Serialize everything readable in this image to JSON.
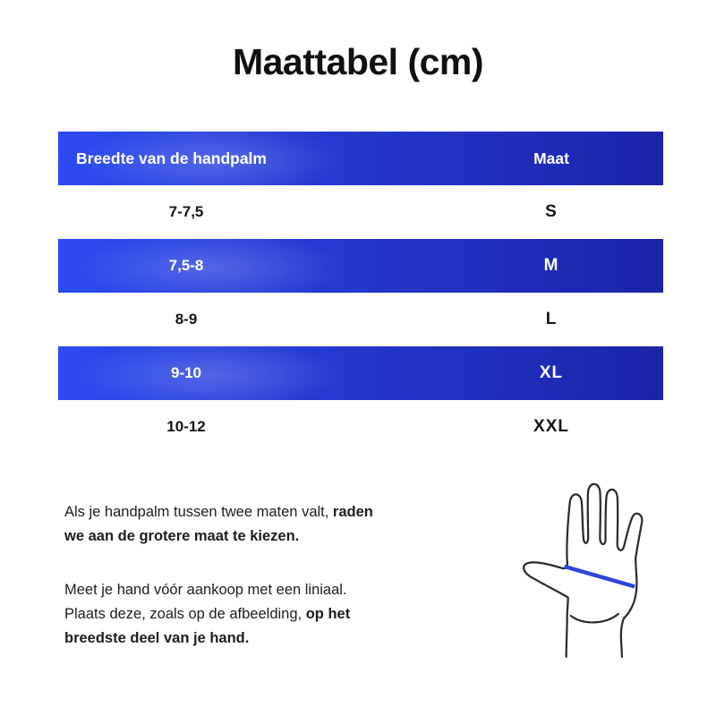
{
  "title": "Maattabel (cm)",
  "table": {
    "header": {
      "col1": "Breedte van de handpalm",
      "col2": "Maat"
    },
    "rows": [
      {
        "width": "7-7,5",
        "size": "S",
        "highlight": false
      },
      {
        "width": "7,5-8",
        "size": "M",
        "highlight": true
      },
      {
        "width": "8-9",
        "size": "L",
        "highlight": false
      },
      {
        "width": "9-10",
        "size": "XL",
        "highlight": true
      },
      {
        "width": "10-12",
        "size": "XXL",
        "highlight": false
      }
    ]
  },
  "chart_data": {
    "type": "table",
    "title": "Maattabel (cm)",
    "columns": [
      "Breedte van de handpalm",
      "Maat"
    ],
    "rows": [
      [
        "7-7,5",
        "S"
      ],
      [
        "7,5-8",
        "M"
      ],
      [
        "8-9",
        "L"
      ],
      [
        "9-10",
        "XL"
      ],
      [
        "10-12",
        "XXL"
      ]
    ]
  },
  "notes": [
    {
      "lines": [
        [
          {
            "text": "Als je handpalm tussen twee maten valt, ",
            "bold": false
          },
          {
            "text": "raden",
            "bold": true
          }
        ],
        [
          {
            "text": "we aan de grotere maat te kiezen.",
            "bold": true
          }
        ]
      ]
    },
    {
      "lines": [
        [
          {
            "text": "Meet je hand vóór aankoop met een liniaal.",
            "bold": false
          }
        ],
        [
          {
            "text": "Plaats deze, zoals op de afbeelding, ",
            "bold": false
          },
          {
            "text": "op het",
            "bold": true
          }
        ],
        [
          {
            "text": "breedste deel van je hand.",
            "bold": true
          }
        ]
      ]
    }
  ],
  "hand_illustration": "open-hand-palm-with-measure-line-across-widest-part",
  "colors": {
    "gradient_left": "#2c4bf0",
    "gradient_right": "#1b24a8",
    "measure_line": "#2b46d8",
    "body_text": "#1d1d1d",
    "header_text": "#ffffff"
  }
}
